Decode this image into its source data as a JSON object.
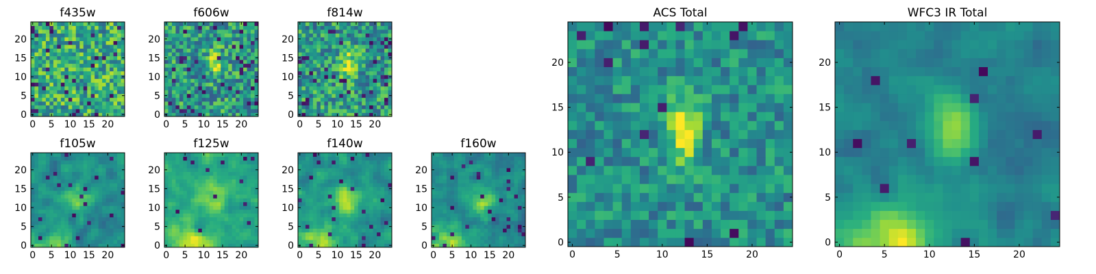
{
  "colormap": "viridis",
  "chart_data": [
    {
      "type": "heatmap",
      "title": "f435w",
      "grid": [
        25,
        25
      ],
      "xlim": [
        0,
        24
      ],
      "ylim": [
        0,
        24
      ],
      "xticks": [
        "0",
        "5",
        "10",
        "15",
        "20"
      ],
      "yticks": [
        "0",
        "5",
        "10",
        "15",
        "20"
      ],
      "signal": {
        "cx": 12,
        "cy": 12,
        "sx": 2,
        "sy": 2,
        "amp": 0.0
      },
      "background": 0.62,
      "noise": 0.28,
      "low_fraction": 0.05,
      "smooth": false,
      "seed": 11
    },
    {
      "type": "heatmap",
      "title": "f606w",
      "grid": [
        25,
        25
      ],
      "xlim": [
        0,
        24
      ],
      "ylim": [
        0,
        24
      ],
      "xticks": [
        "0",
        "5",
        "10",
        "15",
        "20"
      ],
      "yticks": [
        "0",
        "5",
        "10",
        "15",
        "20"
      ],
      "signal": {
        "cx": 13,
        "cy": 14,
        "sx": 1.3,
        "sy": 2.2,
        "amp": 0.4
      },
      "background": 0.55,
      "noise": 0.26,
      "low_fraction": 0.06,
      "smooth": false,
      "seed": 23
    },
    {
      "type": "heatmap",
      "title": "f814w",
      "grid": [
        25,
        25
      ],
      "xlim": [
        0,
        24
      ],
      "ylim": [
        0,
        24
      ],
      "xticks": [
        "0",
        "5",
        "10",
        "15",
        "20"
      ],
      "yticks": [
        "0",
        "5",
        "10",
        "15",
        "20"
      ],
      "signal": {
        "cx": 13,
        "cy": 13,
        "sx": 1.4,
        "sy": 2.4,
        "amp": 0.42
      },
      "background": 0.55,
      "noise": 0.26,
      "low_fraction": 0.06,
      "smooth": false,
      "seed": 37
    },
    {
      "type": "heatmap",
      "title": "f105w",
      "grid": [
        25,
        25
      ],
      "xlim": [
        0,
        24
      ],
      "ylim": [
        0,
        24
      ],
      "xticks": [
        "0",
        "5",
        "10",
        "15",
        "20"
      ],
      "yticks": [
        "0",
        "5",
        "10",
        "15",
        "20"
      ],
      "signal": {
        "cx": 12,
        "cy": 13,
        "sx": 2.5,
        "sy": 2.5,
        "amp": 0.35
      },
      "background": 0.5,
      "noise": 0.25,
      "low_fraction": 0.03,
      "smooth": true,
      "bottom_glow": {
        "cx": 6,
        "amp": 0.3
      },
      "seed": 41
    },
    {
      "type": "heatmap",
      "title": "f125w",
      "grid": [
        25,
        25
      ],
      "xlim": [
        0,
        24
      ],
      "ylim": [
        0,
        24
      ],
      "xticks": [
        "0",
        "5",
        "10",
        "15",
        "20"
      ],
      "yticks": [
        "0",
        "5",
        "10",
        "15",
        "20"
      ],
      "signal": {
        "cx": 12,
        "cy": 13,
        "sx": 2.5,
        "sy": 2.5,
        "amp": 0.25
      },
      "background": 0.62,
      "noise": 0.22,
      "low_fraction": 0.02,
      "smooth": true,
      "bottom_glow": {
        "cx": 7,
        "amp": 0.35
      },
      "seed": 53
    },
    {
      "type": "heatmap",
      "title": "f140w",
      "grid": [
        25,
        25
      ],
      "xlim": [
        0,
        24
      ],
      "ylim": [
        0,
        24
      ],
      "xticks": [
        "0",
        "5",
        "10",
        "15",
        "20"
      ],
      "yticks": [
        "0",
        "5",
        "10",
        "15",
        "20"
      ],
      "signal": {
        "cx": 12,
        "cy": 12,
        "sx": 2.2,
        "sy": 3,
        "amp": 0.35
      },
      "background": 0.55,
      "noise": 0.24,
      "low_fraction": 0.03,
      "smooth": true,
      "bottom_glow": {
        "cx": 5,
        "amp": 0.35
      },
      "seed": 67
    },
    {
      "type": "heatmap",
      "title": "f160w",
      "grid": [
        25,
        25
      ],
      "xlim": [
        0,
        24
      ],
      "ylim": [
        0,
        24
      ],
      "xticks": [
        "0",
        "5",
        "10",
        "15",
        "20"
      ],
      "yticks": [
        "0",
        "5",
        "10",
        "15",
        "20"
      ],
      "signal": {
        "cx": 13,
        "cy": 12,
        "sx": 2,
        "sy": 2.5,
        "amp": 0.35
      },
      "background": 0.5,
      "noise": 0.24,
      "low_fraction": 0.04,
      "smooth": true,
      "bottom_glow": {
        "cx": 3,
        "amp": 0.45
      },
      "seed": 79
    },
    {
      "type": "heatmap",
      "title": "ACS Total",
      "grid": [
        25,
        25
      ],
      "xlim": [
        0,
        24
      ],
      "ylim": [
        0,
        24
      ],
      "xticks": [
        "0",
        "5",
        "10",
        "15",
        "20"
      ],
      "yticks": [
        "0",
        "5",
        "10",
        "15",
        "20"
      ],
      "signal": {
        "cx": 12.5,
        "cy": 12.5,
        "sx": 1.2,
        "sy": 2.8,
        "amp": 0.5
      },
      "background": 0.5,
      "noise": 0.18,
      "low_fraction": 0.03,
      "smooth": false,
      "seed": 97
    },
    {
      "type": "heatmap",
      "title": "WFC3 IR Total",
      "grid": [
        25,
        25
      ],
      "xlim": [
        0,
        24
      ],
      "ylim": [
        0,
        24
      ],
      "xticks": [
        "0",
        "5",
        "10",
        "15",
        "20"
      ],
      "yticks": [
        "0",
        "5",
        "10",
        "15",
        "20"
      ],
      "signal": {
        "cx": 12.5,
        "cy": 13,
        "sx": 1.8,
        "sy": 2.5,
        "amp": 0.42
      },
      "background": 0.45,
      "noise": 0.17,
      "low_fraction": 0.02,
      "smooth": true,
      "bottom_glow": {
        "cx": 6,
        "amp": 0.5
      },
      "seed": 131
    }
  ]
}
